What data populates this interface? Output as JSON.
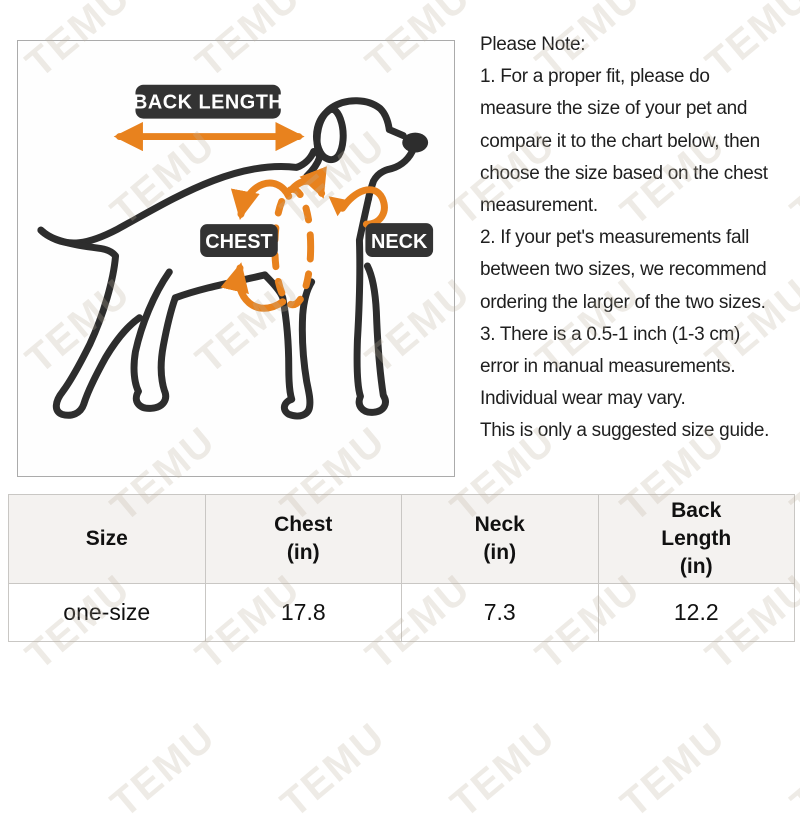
{
  "diagram": {
    "back_length_label": "BACK LENGTH",
    "chest_label": "CHEST",
    "neck_label": "NECK",
    "colors": {
      "accent_orange": "#E8821E",
      "label_background": "#333333",
      "dog_outline": "#2D2D2D",
      "panel_border": "#ABABAB"
    }
  },
  "note": {
    "lines": [
      "Please Note:",
      "1. For a proper fit, please do",
      "measure the size of your pet and",
      "compare it to the chart below, then",
      "choose the size based on the chest",
      "measurement.",
      "2. If your pet's measurements fall",
      "between two sizes, we recommend",
      "ordering the larger of the two sizes.",
      "3. There is a 0.5-1 inch (1-3 cm)",
      "error in manual measurements.",
      "Individual wear may vary.",
      "This is only a suggested size guide."
    ]
  },
  "table": {
    "headers": [
      "Size",
      "Chest\n(in)",
      "Neck\n(in)",
      "Back\nLength\n(in)"
    ],
    "rows": [
      [
        "one-size",
        "17.8",
        "7.3",
        "12.2"
      ]
    ],
    "header_background": "#F4F2F0",
    "border_color": "#C9C7C4"
  },
  "watermark": {
    "text": "TEMU"
  }
}
